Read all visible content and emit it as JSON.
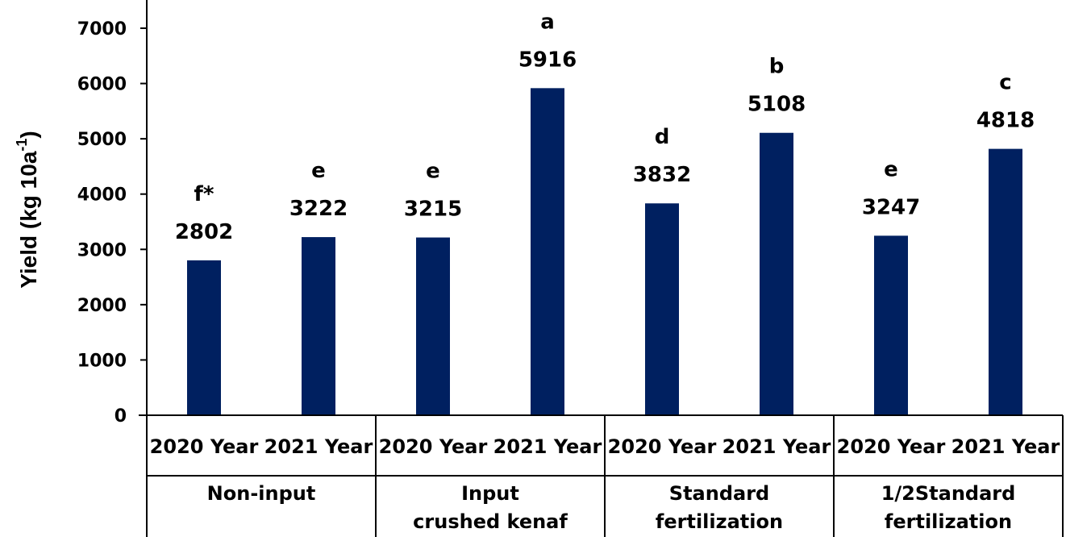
{
  "chart_data": {
    "type": "bar",
    "ylabel": "Yield (kg 10a",
    "ylabel_superscript": "-1",
    "ylabel_close": ")",
    "ylim": [
      0,
      7000
    ],
    "yticks": [
      0,
      1000,
      2000,
      3000,
      4000,
      5000,
      6000,
      7000
    ],
    "grid": false,
    "bar_color": "#002060",
    "groups": [
      {
        "name_lines": [
          "Non-input"
        ]
      },
      {
        "name_lines": [
          "Input",
          "crushed kenaf"
        ]
      },
      {
        "name_lines": [
          "Standard",
          "fertilization"
        ]
      },
      {
        "name_lines": [
          "1/2Standard",
          "fertilization"
        ]
      }
    ],
    "categories": [
      "2020 Year",
      "2021 Year",
      "2020 Year",
      "2021 Year",
      "2020 Year",
      "2021 Year",
      "2020 Year",
      "2021 Year"
    ],
    "values": [
      2802,
      3222,
      3215,
      5916,
      3832,
      5108,
      3247,
      4818
    ],
    "letters": [
      "f*",
      "e",
      "e",
      "a",
      "d",
      "b",
      "e",
      "c"
    ]
  }
}
